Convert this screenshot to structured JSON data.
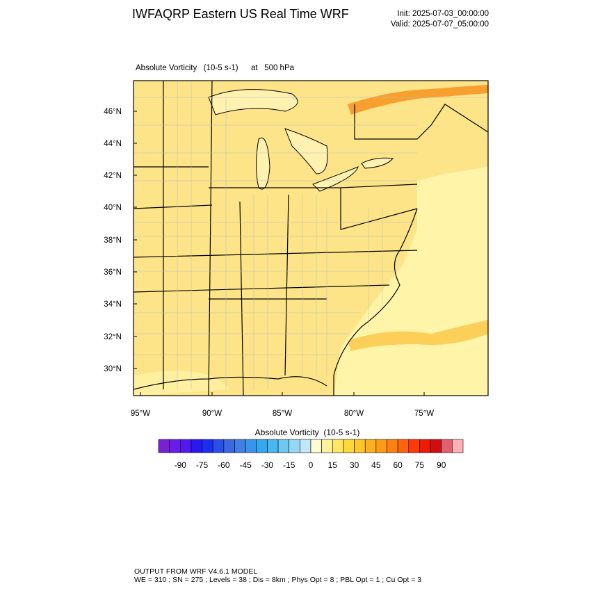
{
  "header": {
    "title": "IWFAQRP Eastern US Real Time WRF",
    "init": "Init: 2025-07-03_00:00:00",
    "valid": "Valid: 2025-07-07_05:00:00"
  },
  "map": {
    "field": "Absolute Vorticity   (10-5 s-1)",
    "level": "at   500 hPa",
    "lat_labels": [
      "46°N",
      "44°N",
      "42°N",
      "40°N",
      "38°N",
      "36°N",
      "34°N",
      "32°N",
      "30°N"
    ],
    "lon_labels": [
      "95°W",
      "90°W",
      "85°W",
      "80°W",
      "75°W"
    ]
  },
  "colorbar": {
    "title": "Absolute Vorticity  (10-5 s-1)",
    "colors": [
      "#7a1fd6",
      "#6a1be8",
      "#5318f0",
      "#2a18f0",
      "#1a2ef0",
      "#2a4fe8",
      "#3a68e4",
      "#3f7fe6",
      "#3a94ea",
      "#33a8ee",
      "#4ab8f0",
      "#6ec8f2",
      "#94d6f4",
      "#c2e6f8",
      "#fffbd0",
      "#fff29a",
      "#ffe666",
      "#ffd83a",
      "#ffc62a",
      "#ffb020",
      "#ff9a16",
      "#ff820e",
      "#ff6408",
      "#ff3a06",
      "#ee1a08",
      "#d00e12",
      "#e06070",
      "#ffb0b0"
    ],
    "ticks": [
      "-90",
      "-75",
      "-60",
      "-45",
      "-30",
      "-15",
      "0",
      "15",
      "30",
      "45",
      "60",
      "75",
      "90"
    ]
  },
  "footer": {
    "line1": "OUTPUT FROM WRF V4.6.1 MODEL",
    "line2": "WE = 310 ; SN = 275 ; Levels = 38 ; Dis = 8km ; Phys Opt = 8 ; PBL Opt = 1 ; Cu Opt = 3"
  }
}
